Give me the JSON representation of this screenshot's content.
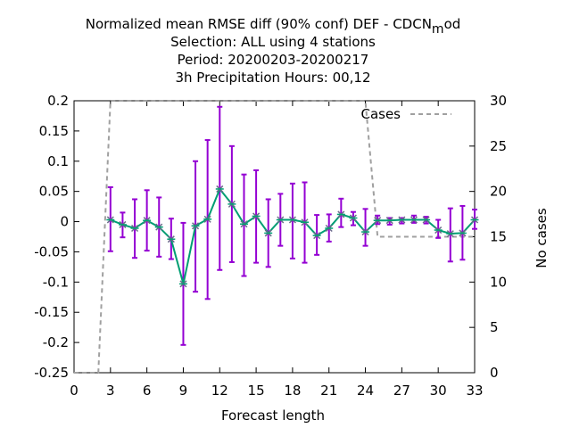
{
  "chart_data": {
    "type": "line",
    "title_lines": [
      "Normalized mean RMSE diff (90% conf) DEF - CDCN",
      "Selection: ALL using     4 stations",
      "Period: 20200203-20200217",
      "3h Precipitation   Hours:  00,12"
    ],
    "title_sub": "m",
    "title_tail": "od",
    "xlabel": "Forecast length",
    "ylabel_right": "No cases",
    "xlim": [
      0,
      33
    ],
    "ylim": [
      -0.25,
      0.2
    ],
    "y2lim": [
      0,
      30
    ],
    "x_ticks": [
      "0",
      "3",
      "6",
      "9",
      "12",
      "15",
      "18",
      "21",
      "24",
      "27",
      "30",
      "33"
    ],
    "y_ticks": [
      "-0.25",
      "-0.2",
      "-0.15",
      "-0.1",
      "-0.05",
      "0",
      "0.05",
      "0.1",
      "0.15",
      "0.2"
    ],
    "y2_ticks": [
      "0",
      "5",
      "10",
      "15",
      "20",
      "25",
      "30"
    ],
    "colors": {
      "line": "#009e73",
      "errorbar": "#9400d3",
      "marker": "#6a6a8a",
      "cases": "#a0a0a0"
    },
    "series": [
      {
        "kind": "mean_diff",
        "x": [
          3,
          4,
          5,
          6,
          7,
          8,
          9,
          10,
          11,
          12,
          13,
          14,
          15,
          16,
          17,
          18,
          19,
          20,
          21,
          22,
          23,
          24,
          25,
          26,
          27,
          28,
          29,
          30,
          31,
          32,
          33
        ],
        "y": [
          0.003,
          -0.005,
          -0.011,
          0.002,
          -0.009,
          -0.029,
          -0.103,
          -0.007,
          0.004,
          0.054,
          0.029,
          -0.004,
          0.009,
          -0.019,
          0.003,
          0.003,
          -0.001,
          -0.023,
          -0.011,
          0.012,
          0.006,
          -0.017,
          0.002,
          0.002,
          0.003,
          0.003,
          0.003,
          -0.014,
          -0.02,
          -0.019,
          0.003
        ],
        "err_lo": [
          -0.049,
          -0.026,
          -0.06,
          -0.048,
          -0.058,
          -0.062,
          -0.204,
          -0.116,
          -0.128,
          -0.08,
          -0.067,
          -0.09,
          -0.068,
          -0.075,
          -0.04,
          -0.061,
          -0.068,
          -0.055,
          -0.033,
          -0.009,
          -0.006,
          -0.04,
          -0.004,
          -0.005,
          -0.003,
          -0.002,
          -0.003,
          -0.027,
          -0.066,
          -0.063,
          -0.012
        ],
        "err_hi": [
          0.057,
          0.015,
          0.037,
          0.052,
          0.04,
          0.005,
          -0.002,
          0.1,
          0.135,
          0.19,
          0.125,
          0.078,
          0.085,
          0.037,
          0.046,
          0.063,
          0.065,
          0.011,
          0.012,
          0.038,
          0.016,
          0.021,
          0.01,
          0.006,
          0.006,
          0.01,
          0.008,
          0.003,
          0.022,
          0.026,
          0.02
        ]
      },
      {
        "name": "Cases",
        "axis": "right",
        "x": [
          0,
          2,
          3,
          24,
          25,
          33
        ],
        "y": [
          0,
          0,
          30,
          30,
          15,
          15
        ]
      }
    ],
    "legend_position": "top-right"
  }
}
